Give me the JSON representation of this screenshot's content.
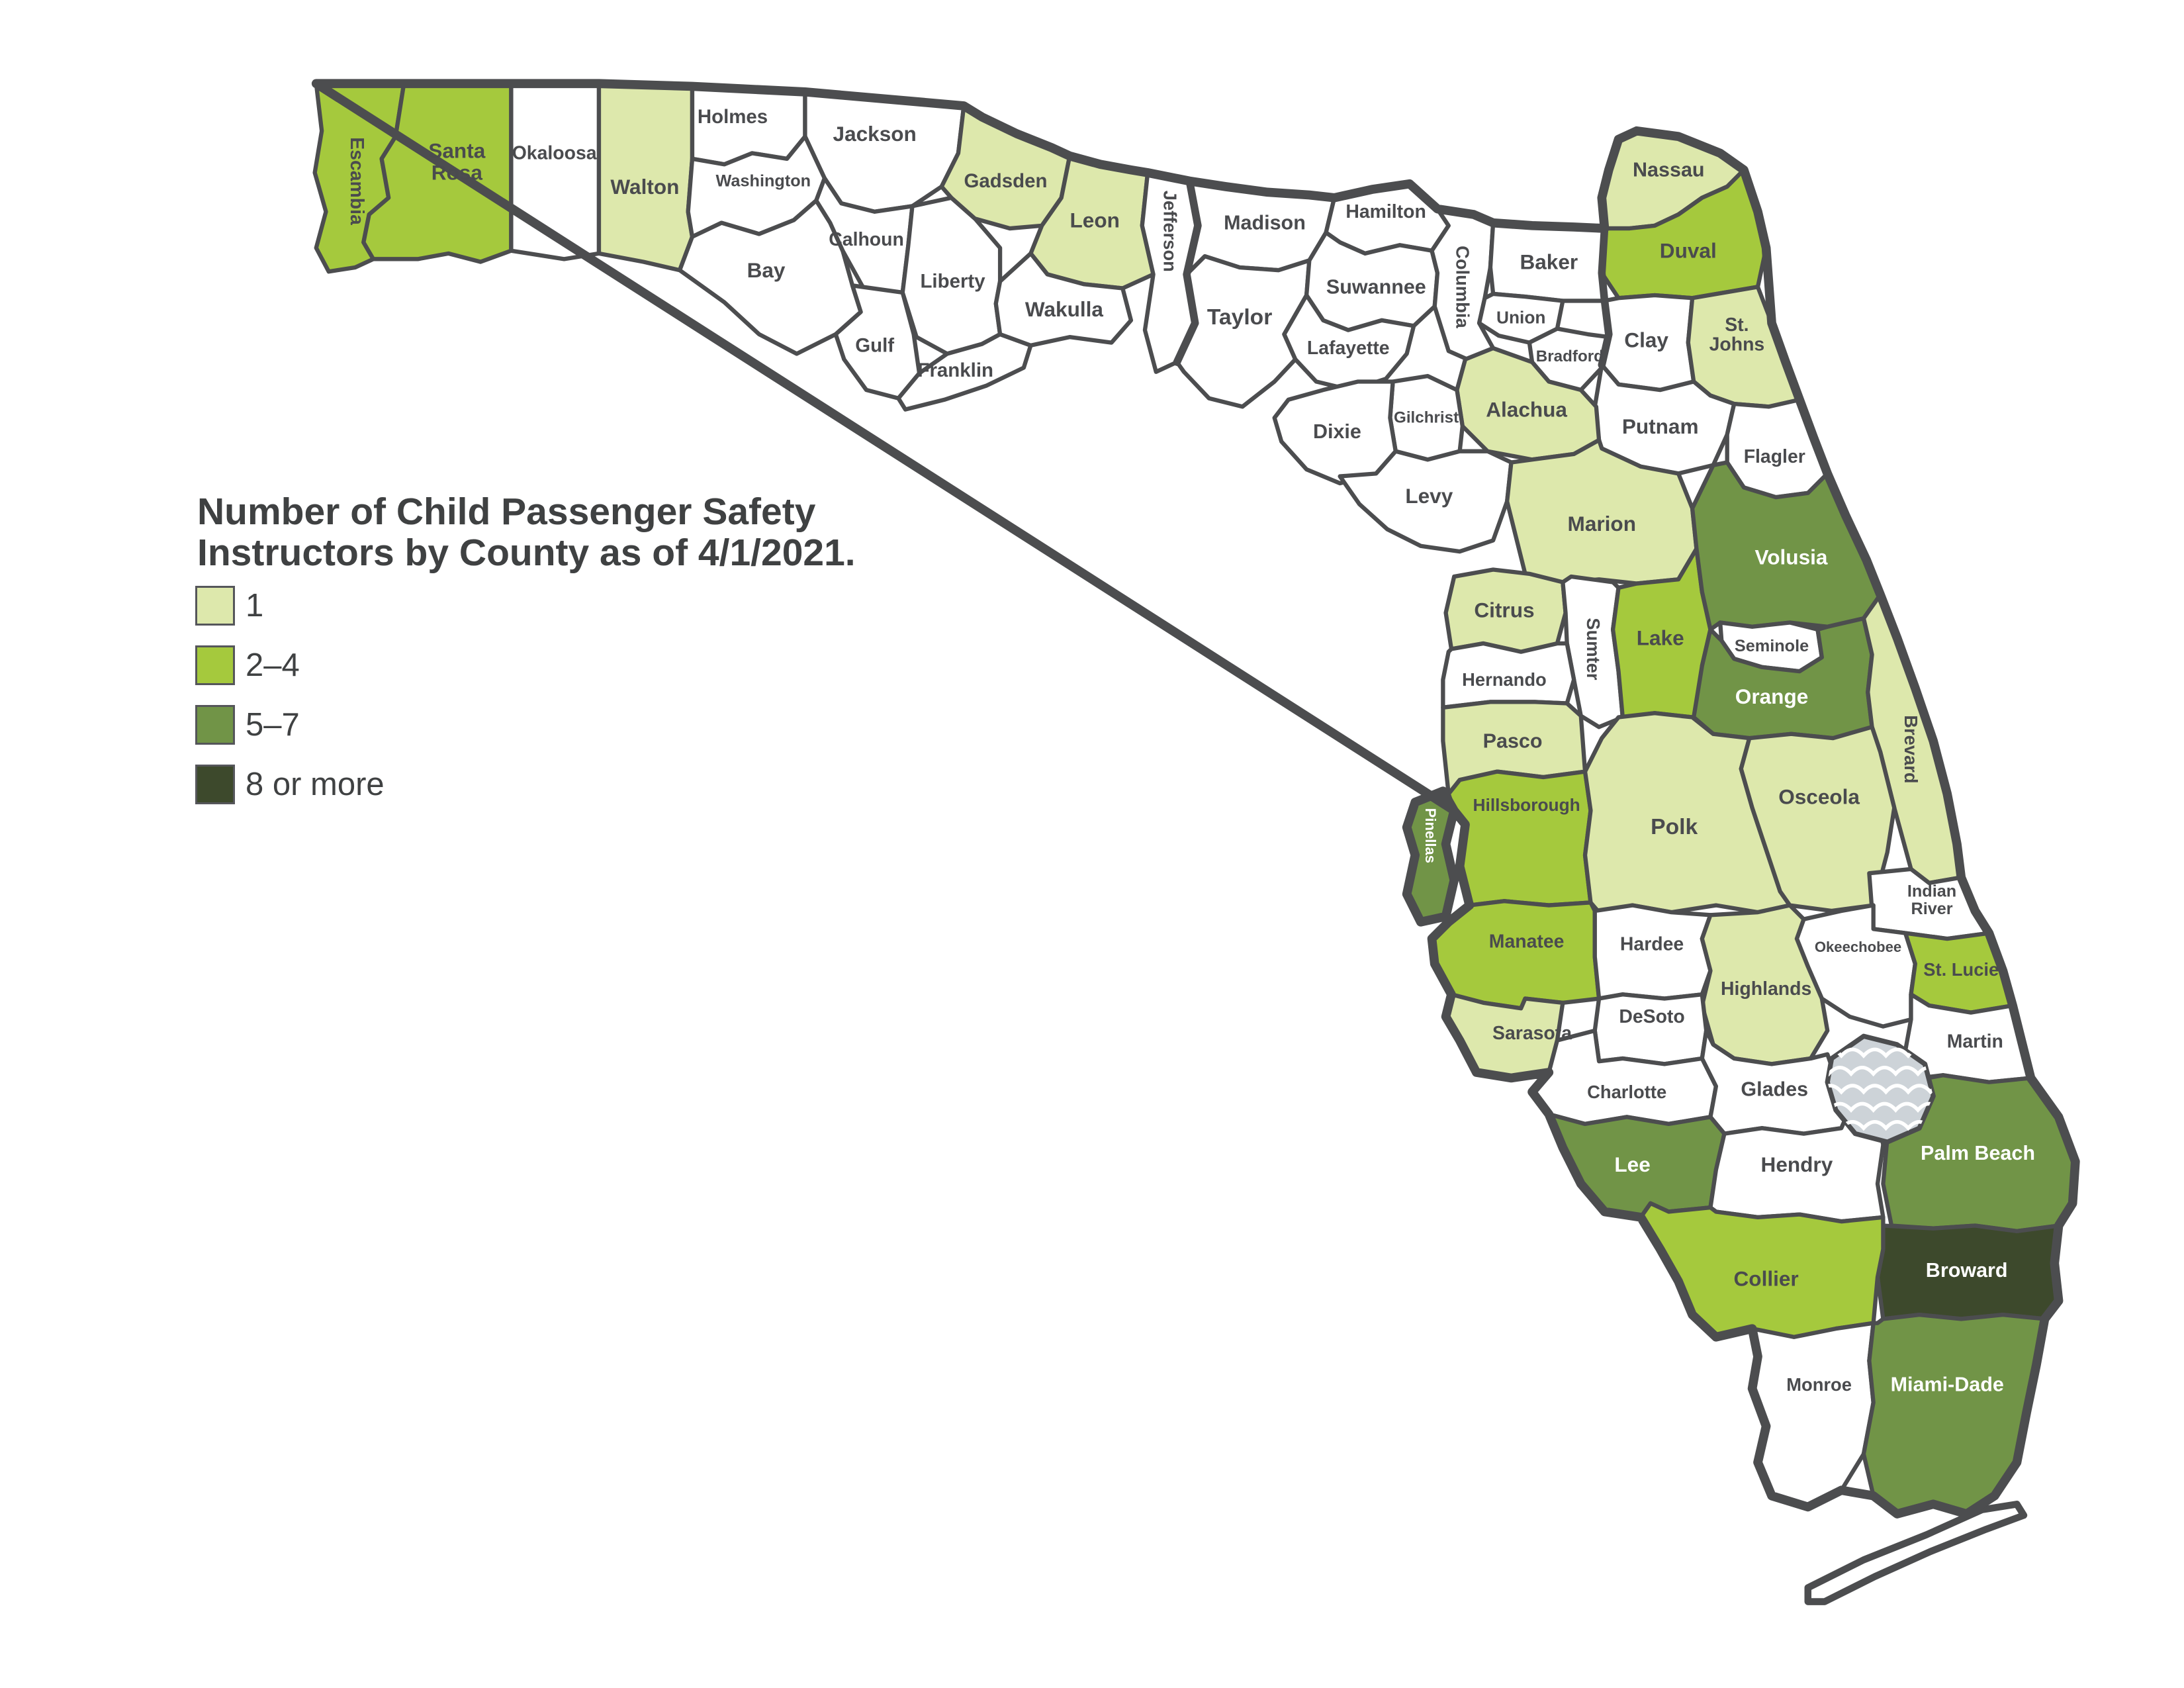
{
  "title": {
    "line1": "Number of Child Passenger Safety",
    "line2": "Instructors by County as of 4/1/2021."
  },
  "legend": {
    "items": [
      {
        "label": "1",
        "bucket": "1",
        "color": "#dde8ac"
      },
      {
        "label": "2–4",
        "bucket": "2-4",
        "color": "#a5c93d"
      },
      {
        "label": "5–7",
        "bucket": "5-7",
        "color": "#719447"
      },
      {
        "label": "8 or more",
        "bucket": "8+",
        "color": "#3d492c"
      }
    ]
  },
  "map": {
    "none_color": "#ffffff",
    "border_color": "#4c4d4f",
    "label_color": "#4a4b4e",
    "label_color_light": "#ffffff",
    "water": {
      "name": "Lake Okeechobee",
      "color": "#cdd3d8",
      "wave_color": "#ffffff"
    },
    "keys_name": "Florida Keys",
    "counties": [
      {
        "id": "escambia",
        "name": "Escambia",
        "bucket": "2-4"
      },
      {
        "id": "santa_rosa",
        "name": "Santa Rosa",
        "bucket": "2-4"
      },
      {
        "id": "okaloosa",
        "name": "Okaloosa",
        "bucket": "0"
      },
      {
        "id": "walton",
        "name": "Walton",
        "bucket": "1"
      },
      {
        "id": "holmes",
        "name": "Holmes",
        "bucket": "0"
      },
      {
        "id": "jackson",
        "name": "Jackson",
        "bucket": "0"
      },
      {
        "id": "washington",
        "name": "Washington",
        "bucket": "0"
      },
      {
        "id": "bay",
        "name": "Bay",
        "bucket": "0"
      },
      {
        "id": "calhoun",
        "name": "Calhoun",
        "bucket": "0"
      },
      {
        "id": "gulf",
        "name": "Gulf",
        "bucket": "0"
      },
      {
        "id": "liberty",
        "name": "Liberty",
        "bucket": "0"
      },
      {
        "id": "franklin",
        "name": "Franklin",
        "bucket": "0"
      },
      {
        "id": "gadsden",
        "name": "Gadsden",
        "bucket": "1"
      },
      {
        "id": "leon",
        "name": "Leon",
        "bucket": "1"
      },
      {
        "id": "wakulla",
        "name": "Wakulla",
        "bucket": "0"
      },
      {
        "id": "jefferson",
        "name": "Jefferson",
        "bucket": "0"
      },
      {
        "id": "madison",
        "name": "Madison",
        "bucket": "0"
      },
      {
        "id": "taylor",
        "name": "Taylor",
        "bucket": "0"
      },
      {
        "id": "hamilton",
        "name": "Hamilton",
        "bucket": "0"
      },
      {
        "id": "suwannee",
        "name": "Suwannee",
        "bucket": "0"
      },
      {
        "id": "lafayette",
        "name": "Lafayette",
        "bucket": "0"
      },
      {
        "id": "columbia",
        "name": "Columbia",
        "bucket": "0"
      },
      {
        "id": "baker",
        "name": "Baker",
        "bucket": "0"
      },
      {
        "id": "union",
        "name": "Union",
        "bucket": "0"
      },
      {
        "id": "bradford",
        "name": "Bradford",
        "bucket": "0"
      },
      {
        "id": "nassau",
        "name": "Nassau",
        "bucket": "1"
      },
      {
        "id": "duval",
        "name": "Duval",
        "bucket": "2-4"
      },
      {
        "id": "clay",
        "name": "Clay",
        "bucket": "0"
      },
      {
        "id": "st_johns",
        "name": "St. Johns",
        "bucket": "1"
      },
      {
        "id": "putnam",
        "name": "Putnam",
        "bucket": "0"
      },
      {
        "id": "flagler",
        "name": "Flagler",
        "bucket": "0"
      },
      {
        "id": "alachua",
        "name": "Alachua",
        "bucket": "1"
      },
      {
        "id": "gilchrist",
        "name": "Gilchrist",
        "bucket": "0"
      },
      {
        "id": "dixie",
        "name": "Dixie",
        "bucket": "0"
      },
      {
        "id": "levy",
        "name": "Levy",
        "bucket": "0"
      },
      {
        "id": "marion",
        "name": "Marion",
        "bucket": "1"
      },
      {
        "id": "citrus",
        "name": "Citrus",
        "bucket": "1"
      },
      {
        "id": "sumter",
        "name": "Sumter",
        "bucket": "0"
      },
      {
        "id": "hernando",
        "name": "Hernando",
        "bucket": "0"
      },
      {
        "id": "pasco",
        "name": "Pasco",
        "bucket": "1"
      },
      {
        "id": "lake",
        "name": "Lake",
        "bucket": "2-4"
      },
      {
        "id": "volusia",
        "name": "Volusia",
        "bucket": "5-7"
      },
      {
        "id": "seminole",
        "name": "Seminole",
        "bucket": "0"
      },
      {
        "id": "orange",
        "name": "Orange",
        "bucket": "5-7"
      },
      {
        "id": "brevard",
        "name": "Brevard",
        "bucket": "1"
      },
      {
        "id": "pinellas",
        "name": "Pinellas",
        "bucket": "5-7"
      },
      {
        "id": "hillsborough",
        "name": "Hillsborough",
        "bucket": "2-4"
      },
      {
        "id": "polk",
        "name": "Polk",
        "bucket": "1"
      },
      {
        "id": "osceola",
        "name": "Osceola",
        "bucket": "1"
      },
      {
        "id": "indian_river",
        "name": "Indian River",
        "bucket": "0"
      },
      {
        "id": "okeechobee",
        "name": "Okeechobee",
        "bucket": "0"
      },
      {
        "id": "st_lucie",
        "name": "St. Lucie",
        "bucket": "2-4"
      },
      {
        "id": "martin",
        "name": "Martin",
        "bucket": "0"
      },
      {
        "id": "manatee",
        "name": "Manatee",
        "bucket": "2-4"
      },
      {
        "id": "hardee",
        "name": "Hardee",
        "bucket": "0"
      },
      {
        "id": "highlands",
        "name": "Highlands",
        "bucket": "1"
      },
      {
        "id": "sarasota",
        "name": "Sarasota",
        "bucket": "1"
      },
      {
        "id": "desoto",
        "name": "DeSoto",
        "bucket": "0"
      },
      {
        "id": "charlotte",
        "name": "Charlotte",
        "bucket": "0"
      },
      {
        "id": "glades",
        "name": "Glades",
        "bucket": "0"
      },
      {
        "id": "lee",
        "name": "Lee",
        "bucket": "5-7"
      },
      {
        "id": "hendry",
        "name": "Hendry",
        "bucket": "0"
      },
      {
        "id": "palm_beach",
        "name": "Palm Beach",
        "bucket": "5-7"
      },
      {
        "id": "broward",
        "name": "Broward",
        "bucket": "8+"
      },
      {
        "id": "collier",
        "name": "Collier",
        "bucket": "2-4"
      },
      {
        "id": "monroe",
        "name": "Monroe",
        "bucket": "0"
      },
      {
        "id": "miami_dade",
        "name": "Miami-Dade",
        "bucket": "5-7"
      }
    ]
  }
}
